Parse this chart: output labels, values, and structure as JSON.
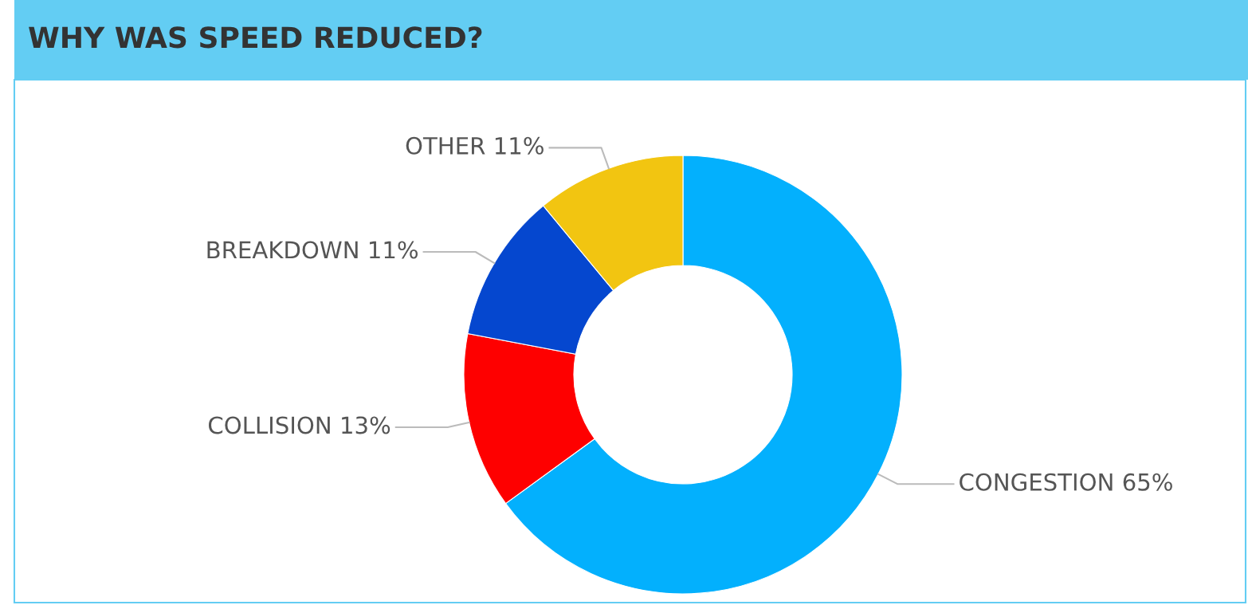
{
  "chart_data": {
    "type": "donut",
    "title": "WHY WAS SPEED REDUCED?",
    "categories": [
      "CONGESTION",
      "COLLISION",
      "BREAKDOWN",
      "OTHER"
    ],
    "values": [
      65,
      13,
      11,
      11
    ],
    "value_labels": [
      "65%",
      "13%",
      "11%",
      "11%"
    ],
    "colors": [
      "#03b0fd",
      "#fe0000",
      "#0547cf",
      "#f2c511"
    ]
  }
}
